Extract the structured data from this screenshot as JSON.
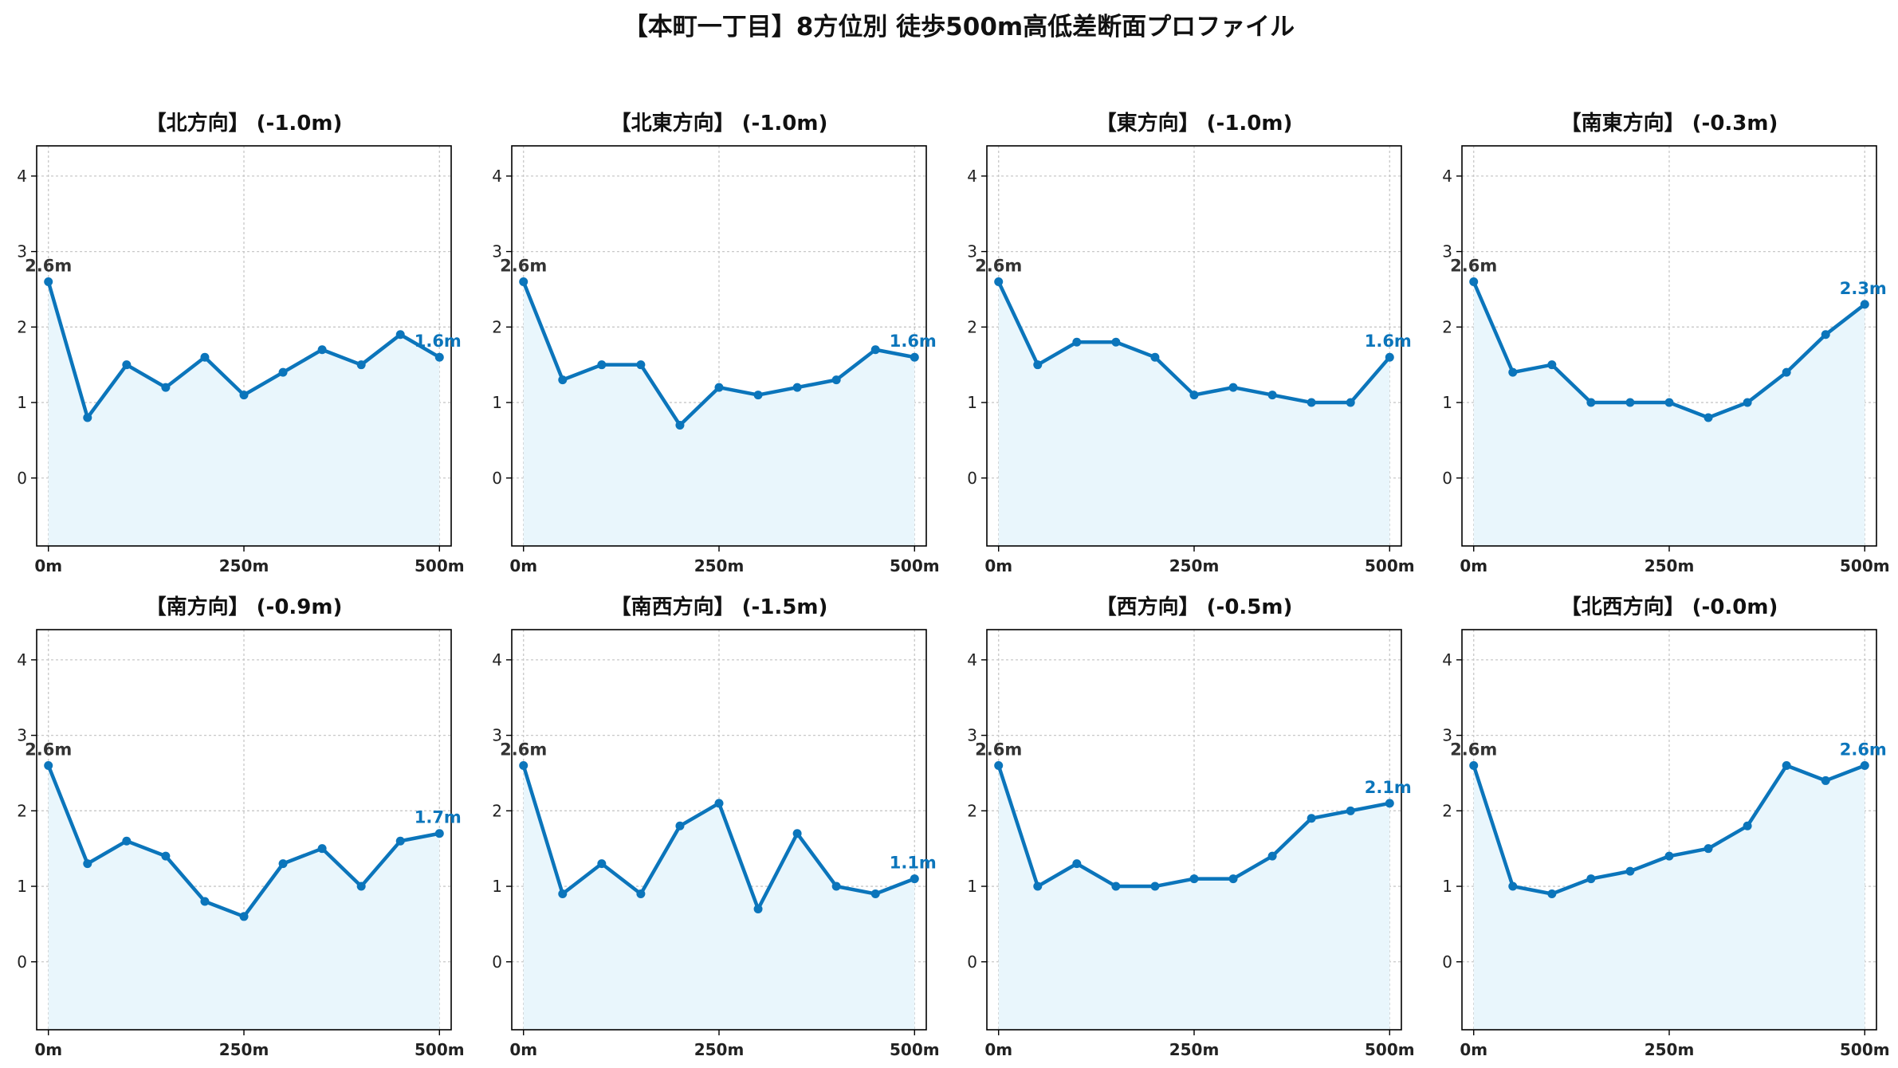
{
  "title": "【本町一丁目】8方位別 徒歩500m高低差断面プロファイル",
  "colors": {
    "line": "#0b75bb",
    "fill": "#e9f6fc",
    "grid": "#c8c8c8",
    "axis": "#000000"
  },
  "chart_data": [
    {
      "type": "area",
      "title": "【北方向】 (-1.0m)",
      "x": [
        0,
        50,
        100,
        150,
        200,
        250,
        300,
        350,
        400,
        450,
        500
      ],
      "values": [
        2.6,
        0.8,
        1.5,
        1.2,
        1.6,
        1.1,
        1.4,
        1.7,
        1.5,
        1.9,
        1.6
      ],
      "start_label": "2.6m",
      "end_label": "1.6m",
      "xticks": [
        0,
        250,
        500
      ],
      "xtick_labels": [
        "0m",
        "250m",
        "500m"
      ],
      "yticks": [
        0,
        1,
        2,
        3,
        4
      ],
      "ytick_labels": [
        "0",
        "1",
        "2",
        "3",
        "4"
      ],
      "xlim": [
        -15,
        515
      ],
      "ylim": [
        -0.9,
        4.4
      ],
      "grid": true
    },
    {
      "type": "area",
      "title": "【北東方向】 (-1.0m)",
      "x": [
        0,
        50,
        100,
        150,
        200,
        250,
        300,
        350,
        400,
        450,
        500
      ],
      "values": [
        2.6,
        1.3,
        1.5,
        1.5,
        0.7,
        1.2,
        1.1,
        1.2,
        1.3,
        1.7,
        1.6
      ],
      "start_label": "2.6m",
      "end_label": "1.6m",
      "xticks": [
        0,
        250,
        500
      ],
      "xtick_labels": [
        "0m",
        "250m",
        "500m"
      ],
      "yticks": [
        0,
        1,
        2,
        3,
        4
      ],
      "ytick_labels": [
        "0",
        "1",
        "2",
        "3",
        "4"
      ],
      "xlim": [
        -15,
        515
      ],
      "ylim": [
        -0.9,
        4.4
      ],
      "grid": true
    },
    {
      "type": "area",
      "title": "【東方向】 (-1.0m)",
      "x": [
        0,
        50,
        100,
        150,
        200,
        250,
        300,
        350,
        400,
        450,
        500
      ],
      "values": [
        2.6,
        1.5,
        1.8,
        1.8,
        1.6,
        1.1,
        1.2,
        1.1,
        1.0,
        1.0,
        1.6
      ],
      "start_label": "2.6m",
      "end_label": "1.6m",
      "xticks": [
        0,
        250,
        500
      ],
      "xtick_labels": [
        "0m",
        "250m",
        "500m"
      ],
      "yticks": [
        0,
        1,
        2,
        3,
        4
      ],
      "ytick_labels": [
        "0",
        "1",
        "2",
        "3",
        "4"
      ],
      "xlim": [
        -15,
        515
      ],
      "ylim": [
        -0.9,
        4.4
      ],
      "grid": true
    },
    {
      "type": "area",
      "title": "【南東方向】 (-0.3m)",
      "x": [
        0,
        50,
        100,
        150,
        200,
        250,
        300,
        350,
        400,
        450,
        500
      ],
      "values": [
        2.6,
        1.4,
        1.5,
        1.0,
        1.0,
        1.0,
        0.8,
        1.0,
        1.4,
        1.9,
        2.3
      ],
      "start_label": "2.6m",
      "end_label": "2.3m",
      "xticks": [
        0,
        250,
        500
      ],
      "xtick_labels": [
        "0m",
        "250m",
        "500m"
      ],
      "yticks": [
        0,
        1,
        2,
        3,
        4
      ],
      "ytick_labels": [
        "0",
        "1",
        "2",
        "3",
        "4"
      ],
      "xlim": [
        -15,
        515
      ],
      "ylim": [
        -0.9,
        4.4
      ],
      "grid": true
    },
    {
      "type": "area",
      "title": "【南方向】 (-0.9m)",
      "x": [
        0,
        50,
        100,
        150,
        200,
        250,
        300,
        350,
        400,
        450,
        500
      ],
      "values": [
        2.6,
        1.3,
        1.6,
        1.4,
        0.8,
        0.6,
        1.3,
        1.5,
        1.0,
        1.6,
        1.7
      ],
      "start_label": "2.6m",
      "end_label": "1.7m",
      "xticks": [
        0,
        250,
        500
      ],
      "xtick_labels": [
        "0m",
        "250m",
        "500m"
      ],
      "yticks": [
        0,
        1,
        2,
        3,
        4
      ],
      "ytick_labels": [
        "0",
        "1",
        "2",
        "3",
        "4"
      ],
      "xlim": [
        -15,
        515
      ],
      "ylim": [
        -0.9,
        4.4
      ],
      "grid": true
    },
    {
      "type": "area",
      "title": "【南西方向】 (-1.5m)",
      "x": [
        0,
        50,
        100,
        150,
        200,
        250,
        300,
        350,
        400,
        450,
        500
      ],
      "values": [
        2.6,
        0.9,
        1.3,
        0.9,
        1.8,
        2.1,
        0.7,
        1.7,
        1.0,
        0.9,
        1.1
      ],
      "start_label": "2.6m",
      "end_label": "1.1m",
      "xticks": [
        0,
        250,
        500
      ],
      "xtick_labels": [
        "0m",
        "250m",
        "500m"
      ],
      "yticks": [
        0,
        1,
        2,
        3,
        4
      ],
      "ytick_labels": [
        "0",
        "1",
        "2",
        "3",
        "4"
      ],
      "xlim": [
        -15,
        515
      ],
      "ylim": [
        -0.9,
        4.4
      ],
      "grid": true
    },
    {
      "type": "area",
      "title": "【西方向】 (-0.5m)",
      "x": [
        0,
        50,
        100,
        150,
        200,
        250,
        300,
        350,
        400,
        450,
        500
      ],
      "values": [
        2.6,
        1.0,
        1.3,
        1.0,
        1.0,
        1.1,
        1.1,
        1.4,
        1.9,
        2.0,
        2.1
      ],
      "start_label": "2.6m",
      "end_label": "2.1m",
      "xticks": [
        0,
        250,
        500
      ],
      "xtick_labels": [
        "0m",
        "250m",
        "500m"
      ],
      "yticks": [
        0,
        1,
        2,
        3,
        4
      ],
      "ytick_labels": [
        "0",
        "1",
        "2",
        "3",
        "4"
      ],
      "xlim": [
        -15,
        515
      ],
      "ylim": [
        -0.9,
        4.4
      ],
      "grid": true
    },
    {
      "type": "area",
      "title": "【北西方向】 (-0.0m)",
      "x": [
        0,
        50,
        100,
        150,
        200,
        250,
        300,
        350,
        400,
        450,
        500
      ],
      "values": [
        2.6,
        1.0,
        0.9,
        1.1,
        1.2,
        1.4,
        1.5,
        1.8,
        2.6,
        2.4,
        2.6
      ],
      "start_label": "2.6m",
      "end_label": "2.6m",
      "xticks": [
        0,
        250,
        500
      ],
      "xtick_labels": [
        "0m",
        "250m",
        "500m"
      ],
      "yticks": [
        0,
        1,
        2,
        3,
        4
      ],
      "ytick_labels": [
        "0",
        "1",
        "2",
        "3",
        "4"
      ],
      "xlim": [
        -15,
        515
      ],
      "ylim": [
        -0.9,
        4.4
      ],
      "grid": true
    }
  ]
}
